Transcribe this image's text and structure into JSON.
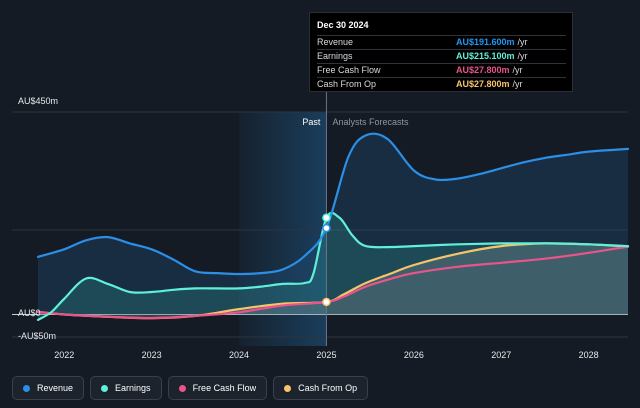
{
  "tooltip": {
    "date": "Dec 30 2024",
    "rows": [
      {
        "label": "Revenue",
        "value": "AU$191.600m",
        "unit": "/yr",
        "color": "#2196f3"
      },
      {
        "label": "Earnings",
        "value": "AU$215.100m",
        "unit": "/yr",
        "color": "#5ff0d8"
      },
      {
        "label": "Free Cash Flow",
        "value": "AU$27.800m",
        "unit": "/yr",
        "color": "#e9558a"
      },
      {
        "label": "Cash From Op",
        "value": "AU$27.800m",
        "unit": "/yr",
        "color": "#f7c46c"
      }
    ]
  },
  "legend": [
    {
      "label": "Revenue",
      "color": "#2b8fe6"
    },
    {
      "label": "Earnings",
      "color": "#5ff0d8"
    },
    {
      "label": "Free Cash Flow",
      "color": "#e9558a"
    },
    {
      "label": "Cash From Op",
      "color": "#f7c46c"
    }
  ],
  "chart_data": {
    "type": "line",
    "title": "",
    "past_label": "Past",
    "forecast_label": "Analysts Forecasts",
    "divider_year": 2025.0,
    "ylim": [
      -50,
      450
    ],
    "y_tick_labels": [
      {
        "value": 450,
        "label": "AU$450m"
      },
      {
        "value": 0,
        "label": "AU$0"
      },
      {
        "value": -50,
        "label": "-AU$50m"
      }
    ],
    "x_ticks": [
      2022,
      2023,
      2024,
      2025,
      2026,
      2027,
      2028
    ],
    "xlim": [
      2021.7,
      2028.45
    ],
    "series": [
      {
        "name": "Revenue",
        "color": "#2b8fe6",
        "x": [
          2021.7,
          2022.0,
          2022.25,
          2022.5,
          2022.75,
          2023.0,
          2023.25,
          2023.5,
          2023.75,
          2024.0,
          2024.25,
          2024.5,
          2024.75,
          2025.0,
          2025.25,
          2025.45,
          2025.7,
          2026.0,
          2026.25,
          2026.5,
          2026.75,
          2027.0,
          2027.25,
          2027.5,
          2027.75,
          2028.0,
          2028.45
        ],
        "y": [
          128,
          145,
          165,
          172,
          158,
          145,
          122,
          96,
          92,
          90,
          92,
          100,
          130,
          192,
          350,
          398,
          390,
          320,
          300,
          302,
          312,
          325,
          338,
          348,
          355,
          362,
          368
        ]
      },
      {
        "name": "Earnings",
        "color": "#5ff0d8",
        "x": [
          2021.7,
          2021.85,
          2022.0,
          2022.25,
          2022.5,
          2022.75,
          2023.0,
          2023.25,
          2023.5,
          2023.75,
          2024.0,
          2024.25,
          2024.5,
          2024.75,
          2024.85,
          2025.0,
          2025.15,
          2025.3,
          2025.45,
          2025.75,
          2026.0,
          2026.5,
          2027.0,
          2027.5,
          2028.0,
          2028.45
        ],
        "y": [
          -12,
          5,
          35,
          80,
          68,
          50,
          50,
          55,
          58,
          58,
          58,
          62,
          68,
          70,
          90,
          215,
          215,
          175,
          152,
          150,
          152,
          156,
          158,
          158,
          156,
          152
        ]
      },
      {
        "name": "Free Cash Flow",
        "color": "#e9558a",
        "x": [
          2021.7,
          2022.0,
          2022.5,
          2023.0,
          2023.5,
          2024.0,
          2024.5,
          2025.0,
          2025.2,
          2025.45,
          2025.75,
          2026.0,
          2026.5,
          2027.0,
          2027.5,
          2028.0,
          2028.45
        ],
        "y": [
          6,
          0,
          -5,
          -8,
          -3,
          5,
          20,
          27.8,
          40,
          62,
          80,
          92,
          106,
          115,
          124,
          137,
          151
        ]
      },
      {
        "name": "Cash From Op",
        "color": "#f7c46c",
        "x": [
          2021.7,
          2022.0,
          2022.5,
          2023.0,
          2023.5,
          2024.0,
          2024.5,
          2025.0,
          2025.2,
          2025.45,
          2025.75,
          2026.0,
          2026.5,
          2027.0,
          2027.5,
          2028.0,
          2028.45
        ],
        "y": [
          6,
          0,
          -5,
          -8,
          -3,
          12,
          24,
          27.8,
          45,
          70,
          92,
          110,
          135,
          152,
          158,
          156,
          151
        ]
      }
    ],
    "markers": [
      {
        "series": "Earnings",
        "x": 2025.0,
        "y": 215
      },
      {
        "series": "Revenue",
        "x": 2025.0,
        "y": 192
      },
      {
        "series": "Cash From Op",
        "x": 2025.0,
        "y": 27.8
      }
    ]
  }
}
